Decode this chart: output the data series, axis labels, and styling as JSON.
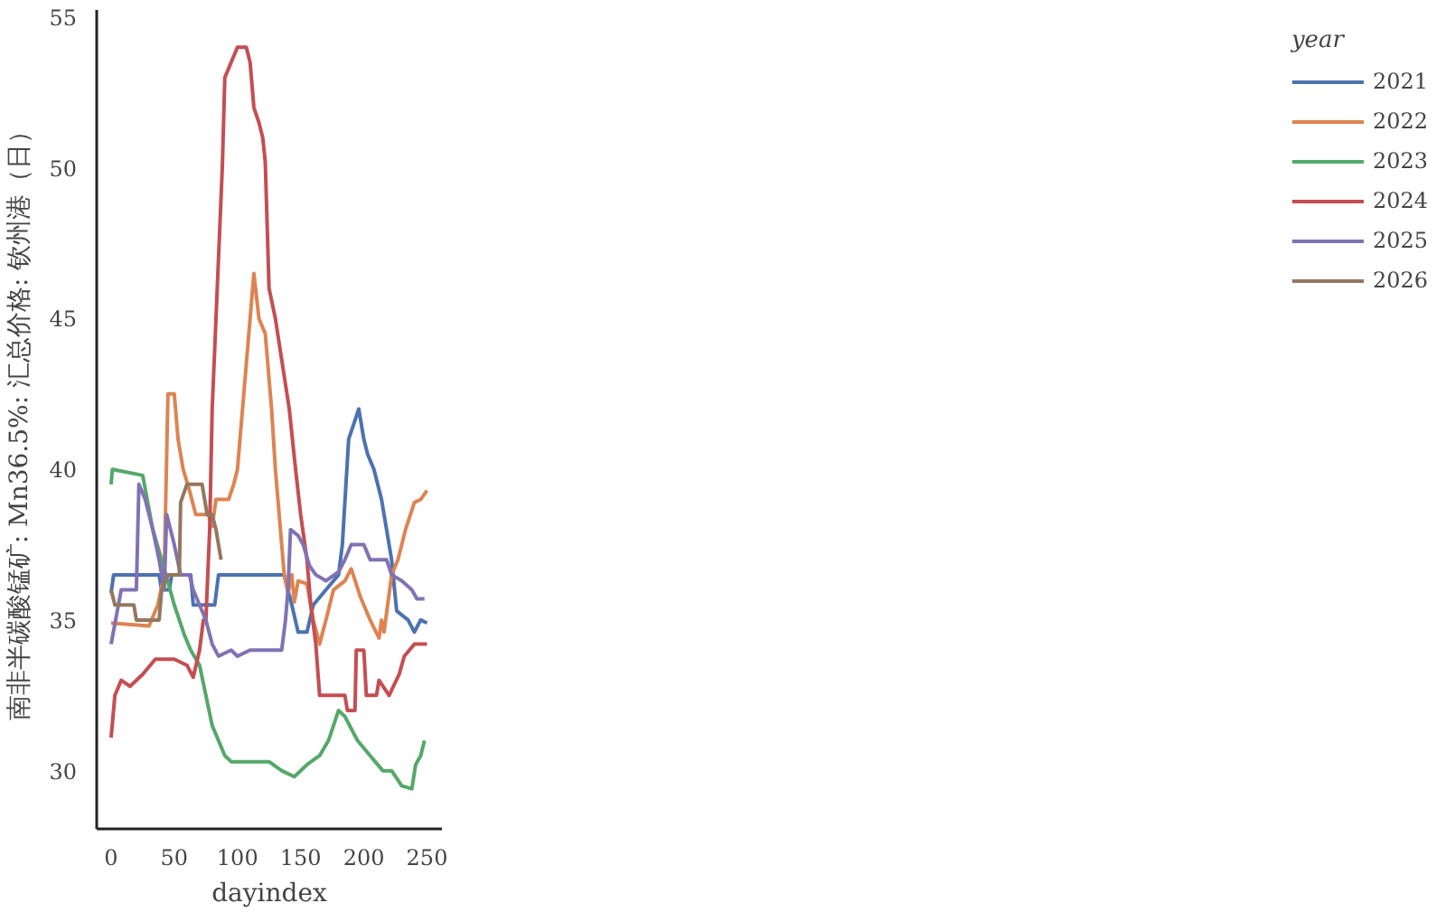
{
  "chart_data": {
    "type": "line",
    "xlabel": "dayindex",
    "ylabel": "南非半碳酸锰矿: Mn36.5%: 汇总价格: 钦州港（日）",
    "legend_title": "year",
    "legend": "right",
    "grid": false,
    "xlim": [
      -11.4,
      261.8
    ],
    "ylim": [
      28.07,
      55.24
    ],
    "xticks": [
      0,
      50,
      100,
      150,
      200,
      250
    ],
    "yticks": [
      30,
      35,
      40,
      45,
      50,
      55
    ],
    "series": [
      {
        "name": "2021",
        "color": "#4c72b0",
        "x": [
          0,
          2,
          38,
          40,
          46,
          48,
          63,
          65,
          82,
          85,
          137,
          143,
          148,
          155,
          160,
          170,
          180,
          183,
          188,
          196,
          200,
          203,
          208,
          214,
          218,
          222,
          226,
          235,
          240,
          245,
          250
        ],
        "values": [
          35.9,
          36.5,
          36.5,
          36,
          36,
          36.5,
          36.5,
          35.5,
          35.5,
          36.5,
          36.5,
          35.5,
          34.6,
          34.6,
          35.5,
          36,
          36.5,
          37.5,
          41,
          42,
          41,
          40.5,
          40,
          39,
          38,
          37,
          35.3,
          35,
          34.6,
          35,
          34.9
        ]
      },
      {
        "name": "2022",
        "color": "#dd8452",
        "x": [
          0,
          30,
          37,
          42,
          45,
          50,
          53,
          57,
          62,
          67,
          77,
          80,
          83,
          93,
          97,
          100,
          104,
          108,
          113,
          117,
          122,
          127,
          130,
          134,
          137,
          140,
          143,
          145,
          148,
          155,
          160,
          165,
          170,
          176,
          185,
          190,
          197,
          205,
          212,
          214,
          216,
          222,
          227,
          233,
          240,
          245,
          250
        ],
        "values": [
          34.9,
          34.8,
          35.5,
          36.5,
          42.5,
          42.5,
          41,
          40,
          39.3,
          38.5,
          38.5,
          38.1,
          39,
          39,
          39.5,
          40,
          42,
          44,
          46.5,
          45,
          44.5,
          42,
          40,
          38,
          36.5,
          35.9,
          36.5,
          35.6,
          36.3,
          36.2,
          35,
          34.2,
          35,
          36,
          36.3,
          36.7,
          35.8,
          35,
          34.4,
          35,
          34.6,
          36.5,
          37,
          38,
          38.9,
          39,
          39.3
        ]
      },
      {
        "name": "2023",
        "color": "#55a868",
        "x": [
          0,
          1,
          25,
          33,
          40,
          50,
          54,
          58,
          63,
          70,
          75,
          80,
          85,
          90,
          95,
          125,
          135,
          145,
          155,
          165,
          172,
          180,
          185,
          195,
          205,
          215,
          222,
          230,
          238,
          241,
          245,
          248
        ],
        "values": [
          39.5,
          40,
          39.8,
          38,
          37,
          35.5,
          35,
          34.5,
          34,
          33.5,
          32.5,
          31.5,
          31,
          30.5,
          30.3,
          30.3,
          30,
          29.8,
          30.2,
          30.5,
          31,
          32,
          31.8,
          31,
          30.5,
          30,
          30,
          29.5,
          29.4,
          30.2,
          30.5,
          31
        ]
      },
      {
        "name": "2024",
        "color": "#c44e52",
        "x": [
          0,
          3,
          8,
          15,
          25,
          35,
          50,
          60,
          65,
          70,
          73,
          75,
          78,
          80,
          85,
          88,
          90,
          100,
          107,
          110,
          113,
          117,
          120,
          122,
          125,
          130,
          141,
          146,
          150,
          155,
          158,
          162,
          165,
          185,
          187,
          193,
          194,
          200,
          202,
          210,
          212,
          220,
          228,
          232,
          240,
          250
        ],
        "values": [
          31.1,
          32.5,
          33,
          32.8,
          33.2,
          33.7,
          33.7,
          33.5,
          33.1,
          34,
          35,
          35,
          38,
          42,
          47,
          50,
          53,
          54,
          54,
          53.5,
          52,
          51.5,
          51,
          50.2,
          46,
          45,
          42,
          40,
          38.5,
          37,
          35.5,
          34.2,
          32.5,
          32.5,
          32,
          32,
          34,
          34,
          32.5,
          32.5,
          33,
          32.5,
          33.2,
          33.8,
          34.2,
          34.2
        ]
      },
      {
        "name": "2025",
        "color": "#8172b3",
        "x": [
          0,
          8,
          20,
          22,
          27,
          33,
          38,
          42,
          44,
          50,
          55,
          62,
          65,
          70,
          75,
          80,
          85,
          95,
          100,
          110,
          135,
          138,
          140,
          142,
          148,
          152,
          157,
          162,
          170,
          180,
          185,
          190,
          200,
          205,
          218,
          222,
          230,
          238,
          242,
          248
        ],
        "values": [
          34.2,
          36,
          36,
          39.5,
          39,
          38,
          37,
          36,
          38.5,
          37.5,
          36.5,
          36.5,
          36,
          35.5,
          35,
          34.2,
          33.8,
          34,
          33.8,
          34,
          34,
          35,
          36,
          38,
          37.8,
          37.5,
          36.8,
          36.5,
          36.3,
          36.6,
          37,
          37.5,
          37.5,
          37,
          37,
          36.5,
          36.3,
          36,
          35.7,
          35.7
        ]
      },
      {
        "name": "2026",
        "color": "#937860",
        "x": [
          0,
          3,
          18,
          20,
          38,
          40,
          45,
          54,
          55,
          60,
          72,
          76,
          80,
          83,
          85,
          87
        ],
        "values": [
          36,
          35.5,
          35.5,
          35,
          35,
          36,
          36.5,
          36.5,
          38.9,
          39.5,
          39.5,
          38.5,
          38.5,
          38,
          37.5,
          37
        ]
      }
    ]
  }
}
